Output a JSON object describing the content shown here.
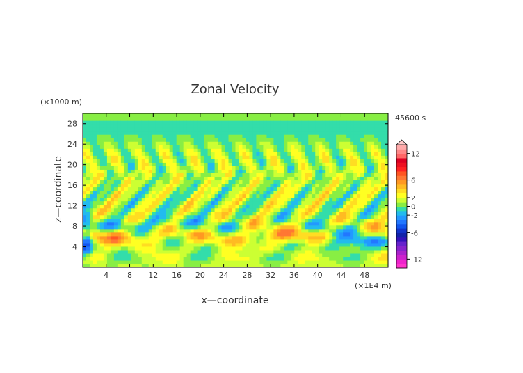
{
  "chart_data": {
    "type": "heatmap",
    "title": "Zonal Velocity",
    "xlabel": "x—coordinate",
    "ylabel": "z—coordinate",
    "x_units": "(×1E4 m)",
    "y_units": "(×1000 m)",
    "time_label": "45600 s",
    "xlim": [
      0,
      52
    ],
    "ylim": [
      0,
      30
    ],
    "x_ticks": [
      4,
      8,
      12,
      16,
      20,
      24,
      28,
      32,
      36,
      40,
      44,
      48
    ],
    "y_ticks": [
      4,
      8,
      12,
      16,
      20,
      24,
      28
    ],
    "colorbar": {
      "range": [
        -14,
        14
      ],
      "tick_labels": [
        12,
        6,
        2,
        0,
        -2,
        -6,
        -12
      ],
      "levels": [
        -14,
        -13,
        -12,
        -11,
        -10,
        -9,
        -8,
        -7,
        -6,
        -5,
        -4,
        -3,
        -2,
        -1,
        0,
        1,
        2,
        3,
        4,
        5,
        6,
        7,
        8,
        9,
        10,
        11,
        12,
        13,
        14
      ],
      "colors": [
        "#ff33cc",
        "#ee22cc",
        "#cc22cc",
        "#aa22cc",
        "#8822cc",
        "#6622cc",
        "#3311bb",
        "#1122aa",
        "#1133cc",
        "#1155ee",
        "#2277ff",
        "#2299ff",
        "#22bbee",
        "#33ddaa",
        "#88ee44",
        "#ccff33",
        "#ffff22",
        "#ffdd22",
        "#ffbb22",
        "#ff9922",
        "#ff7733",
        "#ff5522",
        "#ff2222",
        "#ee1122",
        "#dd0022",
        "#ff6666",
        "#ff8888",
        "#ffaaaa"
      ]
    },
    "field_description": "2D zonal velocity cross-section; values mostly between -8 and 12 in simulation units"
  }
}
